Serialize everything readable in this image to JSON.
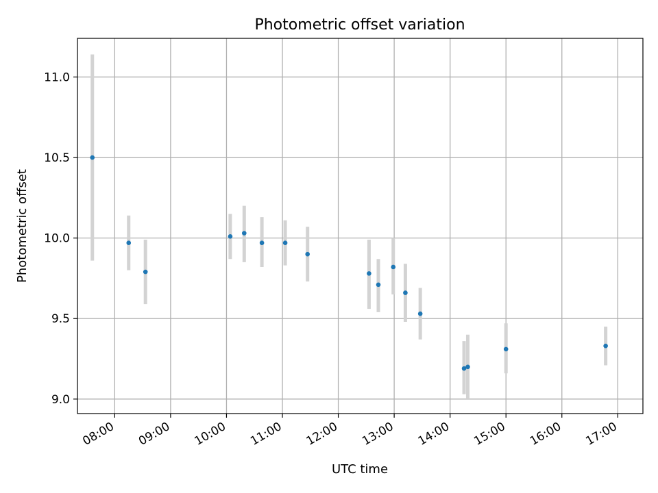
{
  "chart_data": {
    "type": "scatter",
    "title": "Photometric offset variation",
    "xlabel": "UTC time",
    "ylabel": "Photometric offset",
    "x_ticks": [
      "08:00",
      "09:00",
      "10:00",
      "11:00",
      "12:00",
      "13:00",
      "14:00",
      "15:00",
      "16:00",
      "17:00"
    ],
    "y_ticks": [
      "9.0",
      "9.5",
      "10.0",
      "10.5",
      "11.0"
    ],
    "xlim": [
      "07:20",
      "17:27"
    ],
    "ylim": [
      8.91,
      11.24
    ],
    "grid": true,
    "point_color": "#1f77b4",
    "errorbar_color": "#d3d3d3",
    "series": [
      {
        "points": [
          {
            "x": "07:36",
            "y": 10.5,
            "ylo": 9.86,
            "yhi": 11.14
          },
          {
            "x": "08:15",
            "y": 9.97,
            "ylo": 9.8,
            "yhi": 10.14
          },
          {
            "x": "08:33",
            "y": 9.79,
            "ylo": 9.59,
            "yhi": 9.99
          },
          {
            "x": "10:04",
            "y": 10.01,
            "ylo": 9.87,
            "yhi": 10.15
          },
          {
            "x": "10:19",
            "y": 10.03,
            "ylo": 9.85,
            "yhi": 10.2
          },
          {
            "x": "10:38",
            "y": 9.97,
            "ylo": 9.82,
            "yhi": 10.13
          },
          {
            "x": "11:03",
            "y": 9.97,
            "ylo": 9.83,
            "yhi": 10.11
          },
          {
            "x": "11:27",
            "y": 9.9,
            "ylo": 9.73,
            "yhi": 10.07
          },
          {
            "x": "12:33",
            "y": 9.78,
            "ylo": 9.56,
            "yhi": 9.99
          },
          {
            "x": "12:43",
            "y": 9.71,
            "ylo": 9.54,
            "yhi": 9.87
          },
          {
            "x": "12:59",
            "y": 9.82,
            "ylo": 9.65,
            "yhi": 10.0
          },
          {
            "x": "13:12",
            "y": 9.66,
            "ylo": 9.48,
            "yhi": 9.84
          },
          {
            "x": "13:28",
            "y": 9.53,
            "ylo": 9.37,
            "yhi": 9.69
          },
          {
            "x": "14:15",
            "y": 9.19,
            "ylo": 9.03,
            "yhi": 9.36
          },
          {
            "x": "14:19",
            "y": 9.2,
            "ylo": 9.0,
            "yhi": 9.4
          },
          {
            "x": "15:00",
            "y": 9.31,
            "ylo": 9.16,
            "yhi": 9.47
          },
          {
            "x": "16:47",
            "y": 9.33,
            "ylo": 9.21,
            "yhi": 9.45
          }
        ]
      }
    ]
  }
}
